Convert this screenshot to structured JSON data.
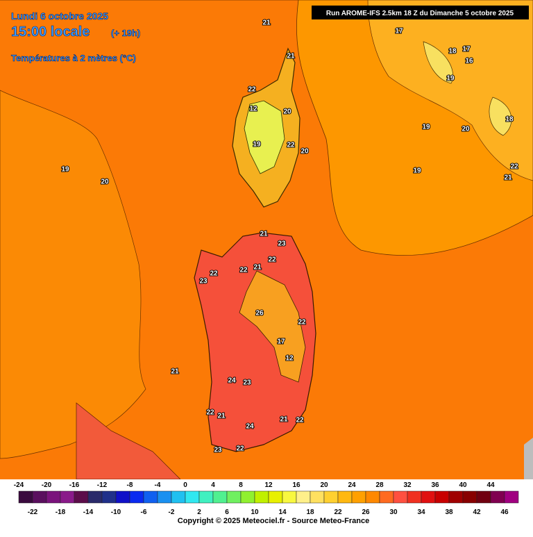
{
  "header": {
    "date": "Lundi 6 octobre 2025",
    "time": "15:00 locale",
    "offset": "(+ 19h)",
    "variable": "Températures à 2 mètres (°C)",
    "run": "Run AROME-IFS 2.5km 18 Z du Dimanche 5 octobre 2025"
  },
  "map_labels": [
    "21",
    "21",
    "22",
    "12",
    "20",
    "22",
    "20",
    "19",
    "20",
    "19",
    "17",
    "18",
    "17",
    "16",
    "19",
    "18",
    "19",
    "20",
    "19",
    "22",
    "21",
    "21",
    "23",
    "22",
    "22",
    "21",
    "22",
    "23",
    "26",
    "22",
    "17",
    "12",
    "21",
    "24",
    "23",
    "22",
    "21",
    "24",
    "21",
    "22",
    "23",
    "22"
  ],
  "legend": {
    "top_labels": [
      -24,
      -20,
      -16,
      -12,
      -8,
      -4,
      0,
      4,
      8,
      12,
      16,
      20,
      24,
      28,
      32,
      36,
      40,
      44
    ],
    "bottom_labels": [
      -22,
      -18,
      -14,
      -10,
      -6,
      -2,
      2,
      6,
      10,
      14,
      18,
      22,
      26,
      30,
      34,
      38,
      42,
      46
    ],
    "colors": [
      "#3a0a3e",
      "#5a0f5e",
      "#7a137c",
      "#8a1a8a",
      "#5c0d4a",
      "#2a2a6a",
      "#20308a",
      "#1010c8",
      "#0a2af0",
      "#1060f0",
      "#1a90f0",
      "#20c0f0",
      "#30e8f0",
      "#40f0c0",
      "#50f090",
      "#70f060",
      "#90f030",
      "#c0f000",
      "#e8f000",
      "#f8f840",
      "#fff08a",
      "#ffe060",
      "#ffd030",
      "#ffb810",
      "#ffa000",
      "#ff8800",
      "#ff6a20",
      "#ff5040",
      "#f03020",
      "#e01010",
      "#c80000",
      "#a00000",
      "#880000",
      "#700010",
      "#800050",
      "#a00080"
    ]
  },
  "copyright": "Copyright © 2025 Meteociel.fr - Source Meteo-France"
}
